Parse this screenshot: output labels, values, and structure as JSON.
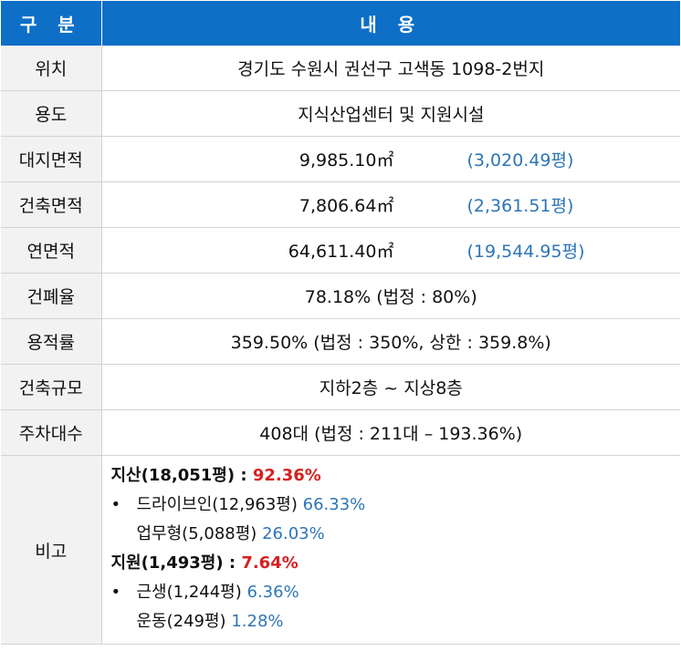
{
  "header": {
    "col1": "구 분",
    "col2": "내 용"
  },
  "rows": [
    {
      "label": "위치",
      "value": "경기도 수원시 권선구 고색동 1098-2번지"
    },
    {
      "label": "용도",
      "value": "지식산업센터 및 지원시설"
    },
    {
      "label": "대지면적",
      "value": "9,985.10㎡",
      "pyeong": "(3,020.49평)"
    },
    {
      "label": "건축면적",
      "value": "7,806.64㎡",
      "pyeong": "(2,361.51평)"
    },
    {
      "label": "연면적",
      "value": "64,611.40㎡",
      "pyeong": "(19,544.95평)"
    },
    {
      "label": "건폐율",
      "value": "78.18% (법정 : 80%)"
    },
    {
      "label": "용적률",
      "value": "359.50% (법정 : 350%, 상한 : 359.8%)"
    },
    {
      "label": "건축규모",
      "value": "지하2층 ~ 지상8층"
    },
    {
      "label": "주차대수",
      "value": "408대 (법정 : 211대 – 193.36%)"
    }
  ],
  "notes": {
    "label": "비고",
    "jisan_title": "지산(18,051평) : ",
    "jisan_pct": "92.36%",
    "bullet": "•",
    "drive_in": "드라이브인(12,963평)",
    "drive_in_pct": "66.33%",
    "office": "업무형(5,088평)",
    "office_pct": "26.03%",
    "jiwon_title": "지원(1,493평) : ",
    "jiwon_pct": "7.64%",
    "neighborhood": "근생(1,244평)",
    "neighborhood_pct": "6.36%",
    "sports": "운동(249평)",
    "sports_pct": "1.28%"
  },
  "colors": {
    "header_bg": "#0d6fc6",
    "label_bg": "#f2f2f2",
    "accent_blue": "#2e75b6",
    "accent_red": "#d62020"
  }
}
